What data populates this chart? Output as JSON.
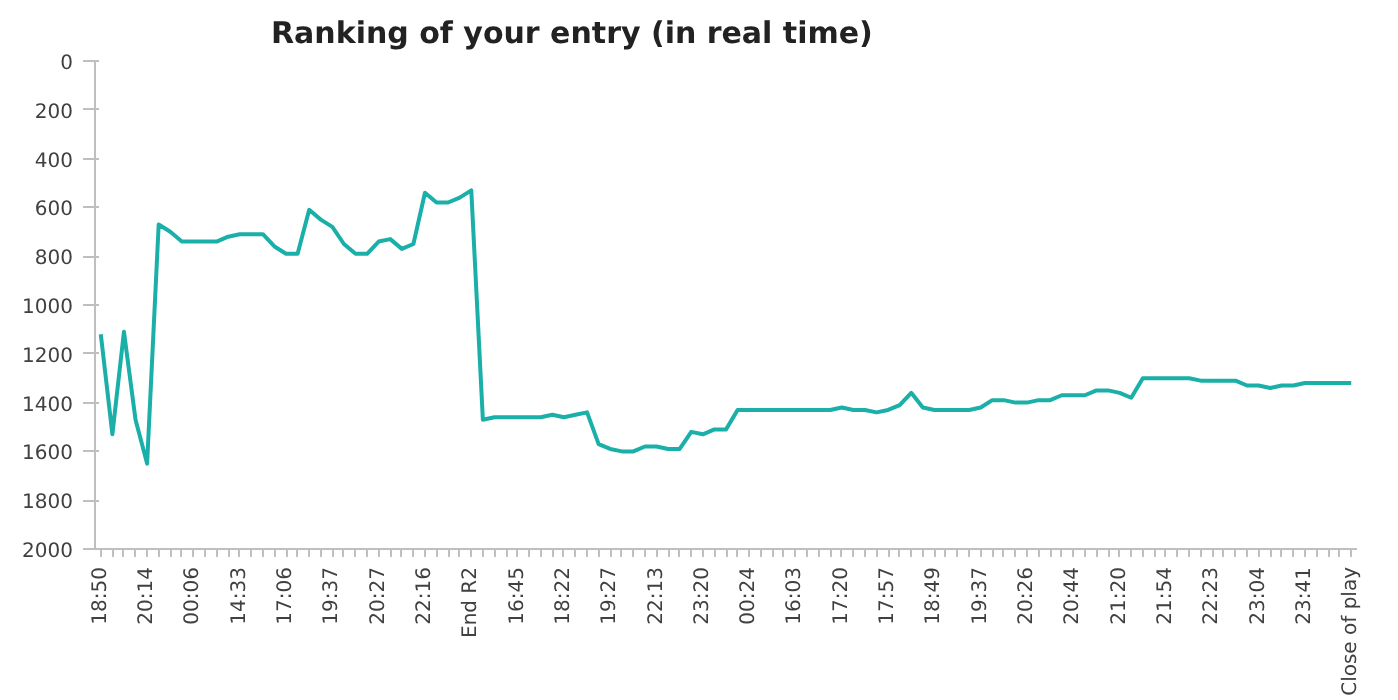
{
  "chart_data": {
    "type": "line",
    "title": "Ranking of your entry (in real time)",
    "categories": [
      "18:50",
      null,
      null,
      null,
      "20:14",
      null,
      null,
      null,
      "00:06",
      null,
      null,
      null,
      "14:33",
      null,
      null,
      null,
      "17:06",
      null,
      null,
      null,
      "19:37",
      null,
      null,
      null,
      "20:27",
      null,
      null,
      null,
      "22:16",
      null,
      null,
      null,
      "End R2",
      null,
      null,
      null,
      "16:45",
      null,
      null,
      null,
      "18:22",
      null,
      null,
      null,
      "19:27",
      null,
      null,
      null,
      "22:13",
      null,
      null,
      null,
      "23:20",
      null,
      null,
      null,
      "00:24",
      null,
      null,
      null,
      "16:03",
      null,
      null,
      null,
      "17:20",
      null,
      null,
      null,
      "17:57",
      null,
      null,
      null,
      "18:49",
      null,
      null,
      null,
      "19:37",
      null,
      null,
      null,
      "20:26",
      null,
      null,
      null,
      "20:44",
      null,
      null,
      null,
      "21:20",
      null,
      null,
      null,
      "21:54",
      null,
      null,
      null,
      "22:23",
      null,
      null,
      null,
      "23:04",
      null,
      null,
      null,
      "23:41",
      null,
      null,
      null,
      "Close of play"
    ],
    "series": [
      {
        "color": "#1aafa8",
        "values": [
          1120,
          1530,
          1110,
          1470,
          1650,
          670,
          700,
          740,
          740,
          740,
          740,
          720,
          710,
          710,
          710,
          760,
          790,
          790,
          610,
          650,
          680,
          750,
          790,
          790,
          740,
          730,
          770,
          750,
          540,
          580,
          580,
          560,
          530,
          1470,
          1460,
          1460,
          1460,
          1460,
          1460,
          1450,
          1460,
          1450,
          1440,
          1570,
          1590,
          1600,
          1600,
          1580,
          1580,
          1590,
          1590,
          1520,
          1530,
          1510,
          1510,
          1430,
          1430,
          1430,
          1430,
          1430,
          1430,
          1430,
          1430,
          1430,
          1420,
          1430,
          1430,
          1440,
          1430,
          1410,
          1360,
          1420,
          1430,
          1430,
          1430,
          1430,
          1420,
          1390,
          1390,
          1400,
          1400,
          1390,
          1390,
          1370,
          1370,
          1370,
          1350,
          1350,
          1360,
          1380,
          1300,
          1300,
          1300,
          1300,
          1300,
          1310,
          1310,
          1310,
          1310,
          1330,
          1330,
          1340,
          1330,
          1330,
          1320,
          1320,
          1320,
          1320,
          1320
        ]
      }
    ],
    "ylim": [
      2000,
      0
    ],
    "yticks": [
      0,
      200,
      400,
      600,
      800,
      1000,
      1200,
      1400,
      1600,
      1800,
      2000
    ],
    "grid": false,
    "marker": "none",
    "line_style": "solid"
  }
}
